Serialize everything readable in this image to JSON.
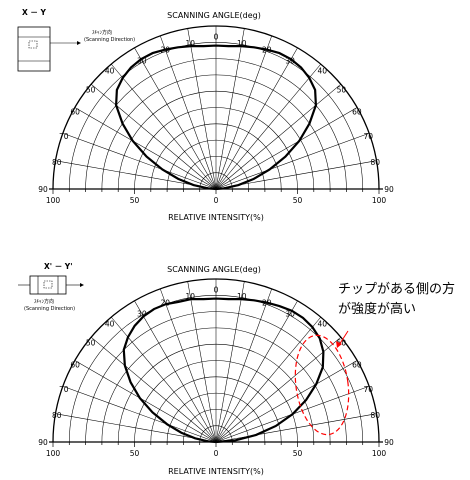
{
  "annotation": {
    "line1": "チップがある側の方",
    "line2": "が強度が高い",
    "color": "#ff0000"
  },
  "chart_data": [
    {
      "type": "polar",
      "title": "SCANNING ANGLE(deg)",
      "xlabel": "RELATIVE INTENSITY(%)",
      "orientation_label": "X － Y",
      "direction_label_jp": "ｽｷｬﾝ方向",
      "direction_label_en": "(Scanning Direction)",
      "angle_range": [
        -90,
        90
      ],
      "angle_ticks": [
        90,
        80,
        70,
        60,
        50,
        40,
        30,
        20,
        10,
        0,
        10,
        20,
        30,
        40,
        50,
        60,
        70,
        80,
        90
      ],
      "intensity_ticks": [
        100,
        50,
        0,
        50,
        100
      ],
      "rlim": [
        0,
        100
      ],
      "series": [
        {
          "angles": [
            -90,
            -85,
            -80,
            -75,
            -70,
            -65,
            -60,
            -55,
            -50,
            -45,
            -40,
            -35,
            -30,
            -25,
            -20,
            -15,
            -10,
            -5,
            0,
            5,
            10,
            15,
            20,
            25,
            30,
            35,
            40,
            45,
            50,
            55,
            60,
            65,
            70,
            75,
            80,
            85,
            90
          ],
          "values": [
            0,
            5,
            14,
            24,
            35,
            47,
            59,
            70,
            80,
            86,
            89,
            91,
            92,
            92,
            91,
            90,
            89,
            88,
            88,
            88,
            89,
            90,
            91,
            92,
            92,
            91,
            89,
            86,
            80,
            70,
            59,
            47,
            35,
            24,
            14,
            5,
            0
          ]
        }
      ]
    },
    {
      "type": "polar",
      "title": "SCANNING ANGLE(deg)",
      "xlabel": "RELATIVE INTENSITY(%)",
      "orientation_label": "X' － Y'",
      "direction_label_jp": "ｽｷｬﾝ方向",
      "direction_label_en": "(Scanning Direction)",
      "angle_range": [
        -90,
        90
      ],
      "angle_ticks": [
        90,
        80,
        70,
        60,
        50,
        40,
        30,
        20,
        10,
        0,
        10,
        20,
        30,
        40,
        50,
        60,
        70,
        80,
        90
      ],
      "intensity_ticks": [
        100,
        50,
        0,
        50,
        100
      ],
      "rlim": [
        0,
        100
      ],
      "series": [
        {
          "angles": [
            -90,
            -85,
            -80,
            -75,
            -70,
            -65,
            -60,
            -55,
            -50,
            -45,
            -40,
            -35,
            -30,
            -25,
            -20,
            -15,
            -10,
            -5,
            0,
            5,
            10,
            15,
            20,
            25,
            30,
            35,
            40,
            45,
            50,
            55,
            60,
            65,
            70,
            75,
            80,
            85,
            90
          ],
          "values": [
            0,
            5,
            13,
            22,
            32,
            43,
            54,
            64,
            73,
            80,
            84,
            87,
            89,
            90,
            90,
            89,
            89,
            88,
            88,
            88,
            89,
            90,
            91,
            92,
            93,
            93,
            92,
            90,
            86,
            80,
            71,
            61,
            50,
            38,
            25,
            12,
            0
          ]
        }
      ]
    }
  ]
}
